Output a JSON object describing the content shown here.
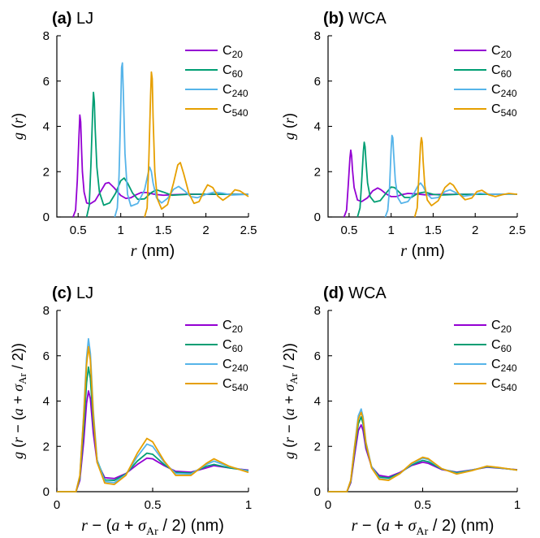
{
  "colors": {
    "C20": "#9400d3",
    "C60": "#009e73",
    "C240": "#56b4e9",
    "C540": "#e69f00"
  },
  "chart_data": [
    {
      "type": "line",
      "panel": "(a)",
      "title": "LJ",
      "xlabel_var": "r",
      "xlabel_unit": " (nm)",
      "ylabel_text": "g (r)",
      "xlim": [
        0.25,
        2.5
      ],
      "ylim": [
        0,
        8
      ],
      "xticks": [
        0.5,
        1,
        1.5,
        2,
        2.5
      ],
      "xtick_labels": [
        "0.5",
        "1",
        "1.5",
        "2",
        "2.5"
      ],
      "yticks": [
        0,
        2,
        4,
        6,
        8
      ],
      "legend": "top-right",
      "series": [
        {
          "name": "C20",
          "name_main": "C",
          "name_sub": "20",
          "color": "#9400d3",
          "x": [
            0.44,
            0.47,
            0.49,
            0.51,
            0.52,
            0.53,
            0.54,
            0.55,
            0.57,
            0.6,
            0.64,
            0.7,
            0.76,
            0.82,
            0.86,
            0.92,
            1.0,
            1.06,
            1.12,
            1.18,
            1.24,
            1.3,
            1.4,
            1.5,
            1.6,
            1.8,
            2.0,
            2.2,
            2.5
          ],
          "y": [
            0,
            0.3,
            1.6,
            3.6,
            4.5,
            4.2,
            3.0,
            2.0,
            1.1,
            0.62,
            0.58,
            0.72,
            1.1,
            1.48,
            1.52,
            1.3,
            0.95,
            0.82,
            0.85,
            0.98,
            1.08,
            1.08,
            1.0,
            0.96,
            0.98,
            1.01,
            1.0,
            1.0,
            1.0
          ]
        },
        {
          "name": "C60",
          "name_main": "C",
          "name_sub": "60",
          "color": "#009e73",
          "x": [
            0.6,
            0.63,
            0.65,
            0.67,
            0.68,
            0.69,
            0.7,
            0.72,
            0.75,
            0.8,
            0.87,
            0.94,
            1.0,
            1.04,
            1.08,
            1.14,
            1.2,
            1.28,
            1.36,
            1.42,
            1.5,
            1.6,
            1.8,
            2.0,
            2.2,
            2.5
          ],
          "y": [
            0,
            0.5,
            2.3,
            4.6,
            5.5,
            5.1,
            3.9,
            2.2,
            1.1,
            0.52,
            0.62,
            1.05,
            1.6,
            1.72,
            1.5,
            1.05,
            0.78,
            0.8,
            1.08,
            1.2,
            1.1,
            0.96,
            1.0,
            1.01,
            1.0,
            1.0
          ]
        },
        {
          "name": "C240",
          "name_main": "C",
          "name_sub": "240",
          "color": "#56b4e9",
          "x": [
            0.93,
            0.96,
            0.98,
            1.0,
            1.01,
            1.02,
            1.03,
            1.05,
            1.08,
            1.12,
            1.2,
            1.28,
            1.32,
            1.34,
            1.36,
            1.38,
            1.42,
            1.48,
            1.55,
            1.62,
            1.68,
            1.75,
            1.82,
            1.9,
            2.0,
            2.1,
            2.2,
            2.3,
            2.5
          ],
          "y": [
            0,
            0.4,
            1.8,
            4.8,
            6.6,
            6.8,
            5.6,
            2.8,
            1.0,
            0.48,
            0.6,
            1.2,
            1.9,
            2.2,
            2.0,
            1.5,
            0.85,
            0.62,
            0.82,
            1.22,
            1.35,
            1.15,
            0.9,
            0.85,
            1.0,
            1.1,
            1.05,
            0.97,
            1.0
          ]
        },
        {
          "name": "C540",
          "name_main": "C",
          "name_sub": "540",
          "color": "#e69f00",
          "x": [
            1.28,
            1.31,
            1.33,
            1.35,
            1.36,
            1.37,
            1.38,
            1.4,
            1.43,
            1.48,
            1.55,
            1.62,
            1.67,
            1.7,
            1.74,
            1.8,
            1.86,
            1.92,
            1.98,
            2.02,
            2.08,
            2.14,
            2.2,
            2.28,
            2.34,
            2.4,
            2.5
          ],
          "y": [
            0,
            0.4,
            2.5,
            5.3,
            6.4,
            6.1,
            4.4,
            2.0,
            0.8,
            0.35,
            0.55,
            1.5,
            2.3,
            2.4,
            1.9,
            1.05,
            0.6,
            0.68,
            1.15,
            1.42,
            1.3,
            0.92,
            0.74,
            0.95,
            1.2,
            1.15,
            0.9
          ]
        }
      ]
    },
    {
      "type": "line",
      "panel": "(b)",
      "title": "WCA",
      "xlabel_var": "r",
      "xlabel_unit": " (nm)",
      "ylabel_text": "g (r)",
      "xlim": [
        0.25,
        2.5
      ],
      "ylim": [
        0,
        8
      ],
      "xticks": [
        0.5,
        1,
        1.5,
        2,
        2.5
      ],
      "xtick_labels": [
        "0.5",
        "1",
        "1.5",
        "2",
        "2.5"
      ],
      "yticks": [
        0,
        2,
        4,
        6,
        8
      ],
      "legend": "top-right",
      "series": [
        {
          "name": "C20",
          "name_main": "C",
          "name_sub": "20",
          "color": "#9400d3",
          "x": [
            0.44,
            0.47,
            0.49,
            0.51,
            0.52,
            0.53,
            0.54,
            0.56,
            0.6,
            0.65,
            0.72,
            0.78,
            0.84,
            0.88,
            0.94,
            1.0,
            1.06,
            1.12,
            1.2,
            1.3,
            1.4,
            1.6,
            1.8,
            2.0,
            2.5
          ],
          "y": [
            0,
            0.3,
            1.4,
            2.6,
            2.95,
            2.7,
            2.1,
            1.3,
            0.75,
            0.68,
            0.85,
            1.15,
            1.28,
            1.2,
            1.02,
            0.9,
            0.9,
            0.98,
            1.04,
            1.02,
            0.98,
            1.0,
            1.0,
            1.0,
            1.0
          ]
        },
        {
          "name": "C60",
          "name_main": "C",
          "name_sub": "60",
          "color": "#009e73",
          "x": [
            0.6,
            0.63,
            0.65,
            0.67,
            0.68,
            0.69,
            0.7,
            0.72,
            0.75,
            0.8,
            0.87,
            0.95,
            1.0,
            1.04,
            1.1,
            1.16,
            1.24,
            1.32,
            1.4,
            1.5,
            1.6,
            1.8,
            2.0,
            2.5
          ],
          "y": [
            0,
            0.4,
            1.6,
            2.9,
            3.3,
            3.1,
            2.5,
            1.5,
            0.9,
            0.66,
            0.72,
            1.1,
            1.32,
            1.3,
            1.08,
            0.86,
            0.86,
            1.05,
            1.1,
            1.0,
            0.97,
            1.0,
            1.0,
            1.0
          ]
        },
        {
          "name": "C240",
          "name_main": "C",
          "name_sub": "240",
          "color": "#56b4e9",
          "x": [
            0.93,
            0.96,
            0.98,
            1.0,
            1.01,
            1.02,
            1.03,
            1.05,
            1.08,
            1.12,
            1.2,
            1.28,
            1.32,
            1.35,
            1.38,
            1.42,
            1.48,
            1.56,
            1.64,
            1.7,
            1.78,
            1.86,
            1.95,
            2.05,
            2.2,
            2.5
          ],
          "y": [
            0,
            0.3,
            1.2,
            3.0,
            3.6,
            3.5,
            2.8,
            1.6,
            0.85,
            0.6,
            0.68,
            1.1,
            1.38,
            1.5,
            1.35,
            1.05,
            0.82,
            0.86,
            1.12,
            1.2,
            1.05,
            0.92,
            0.96,
            1.05,
            1.0,
            1.0
          ]
        },
        {
          "name": "C540",
          "name_main": "C",
          "name_sub": "540",
          "color": "#e69f00",
          "x": [
            1.28,
            1.31,
            1.33,
            1.35,
            1.36,
            1.37,
            1.38,
            1.4,
            1.43,
            1.48,
            1.56,
            1.64,
            1.7,
            1.74,
            1.8,
            1.88,
            1.96,
            2.02,
            2.08,
            2.16,
            2.24,
            2.32,
            2.4,
            2.5
          ],
          "y": [
            0,
            0.4,
            1.8,
            3.2,
            3.5,
            3.3,
            2.5,
            1.4,
            0.75,
            0.5,
            0.72,
            1.3,
            1.5,
            1.4,
            1.05,
            0.76,
            0.84,
            1.12,
            1.18,
            0.98,
            0.9,
            0.98,
            1.04,
            1.0
          ]
        }
      ]
    },
    {
      "type": "line",
      "panel": "(c)",
      "title": "LJ",
      "xlabel_text": "r − (a + σAr / 2) (nm)",
      "ylabel_text": "g (r − (a + σAr / 2))",
      "xlim": [
        0,
        1
      ],
      "ylim": [
        0,
        8
      ],
      "xticks": [
        0,
        0.5,
        1
      ],
      "xtick_labels": [
        "0",
        "0.5",
        "1"
      ],
      "yticks": [
        0,
        2,
        4,
        6,
        8
      ],
      "legend": "top-right",
      "series": [
        {
          "name": "C20",
          "name_main": "C",
          "name_sub": "20",
          "color": "#9400d3",
          "x": [
            0,
            0.1,
            0.12,
            0.14,
            0.155,
            0.165,
            0.175,
            0.19,
            0.21,
            0.25,
            0.3,
            0.36,
            0.42,
            0.47,
            0.5,
            0.56,
            0.62,
            0.7,
            0.78,
            0.82,
            0.9,
            1.0
          ],
          "y": [
            0,
            0,
            0.5,
            2.2,
            3.9,
            4.45,
            4.1,
            2.6,
            1.3,
            0.62,
            0.58,
            0.8,
            1.2,
            1.48,
            1.45,
            1.15,
            0.9,
            0.86,
            1.05,
            1.15,
            1.05,
            0.95
          ]
        },
        {
          "name": "C60",
          "name_main": "C",
          "name_sub": "60",
          "color": "#009e73",
          "x": [
            0,
            0.1,
            0.12,
            0.14,
            0.155,
            0.165,
            0.175,
            0.19,
            0.21,
            0.25,
            0.3,
            0.36,
            0.42,
            0.47,
            0.5,
            0.56,
            0.62,
            0.7,
            0.78,
            0.82,
            0.9,
            1.0
          ],
          "y": [
            0,
            0,
            0.6,
            2.8,
            4.8,
            5.5,
            5.0,
            3.1,
            1.4,
            0.52,
            0.5,
            0.78,
            1.35,
            1.7,
            1.65,
            1.2,
            0.85,
            0.82,
            1.12,
            1.2,
            1.05,
            0.93
          ]
        },
        {
          "name": "C240",
          "name_main": "C",
          "name_sub": "240",
          "color": "#56b4e9",
          "x": [
            0,
            0.1,
            0.12,
            0.14,
            0.155,
            0.165,
            0.175,
            0.19,
            0.21,
            0.25,
            0.3,
            0.36,
            0.42,
            0.47,
            0.5,
            0.56,
            0.62,
            0.7,
            0.78,
            0.82,
            0.9,
            1.0
          ],
          "y": [
            0,
            0,
            0.7,
            3.4,
            5.9,
            6.75,
            6.1,
            3.6,
            1.4,
            0.45,
            0.4,
            0.75,
            1.55,
            2.1,
            2.0,
            1.3,
            0.8,
            0.78,
            1.2,
            1.35,
            1.1,
            0.9
          ]
        },
        {
          "name": "C540",
          "name_main": "C",
          "name_sub": "540",
          "color": "#e69f00",
          "x": [
            0,
            0.1,
            0.12,
            0.14,
            0.155,
            0.165,
            0.175,
            0.19,
            0.21,
            0.25,
            0.3,
            0.36,
            0.42,
            0.47,
            0.5,
            0.56,
            0.62,
            0.7,
            0.78,
            0.82,
            0.9,
            1.0
          ],
          "y": [
            0,
            0,
            0.7,
            3.3,
            5.6,
            6.4,
            5.8,
            3.4,
            1.3,
            0.38,
            0.32,
            0.72,
            1.7,
            2.35,
            2.2,
            1.35,
            0.72,
            0.72,
            1.25,
            1.45,
            1.12,
            0.85
          ]
        }
      ]
    },
    {
      "type": "line",
      "panel": "(d)",
      "title": "WCA",
      "xlabel_text": "r − (a + σAr / 2) (nm)",
      "ylabel_text": "g (r − (a + σAr / 2))",
      "xlim": [
        0,
        1
      ],
      "ylim": [
        0,
        8
      ],
      "xticks": [
        0,
        0.5,
        1
      ],
      "xtick_labels": [
        "0",
        "0.5",
        "1"
      ],
      "yticks": [
        0,
        2,
        4,
        6,
        8
      ],
      "legend": "top-right",
      "series": [
        {
          "name": "C20",
          "name_main": "C",
          "name_sub": "20",
          "color": "#9400d3",
          "x": [
            0,
            0.1,
            0.12,
            0.14,
            0.16,
            0.175,
            0.185,
            0.2,
            0.23,
            0.27,
            0.32,
            0.38,
            0.44,
            0.5,
            0.53,
            0.6,
            0.68,
            0.76,
            0.84,
            0.9,
            1.0
          ],
          "y": [
            0,
            0,
            0.4,
            1.6,
            2.7,
            2.95,
            2.7,
            1.9,
            1.1,
            0.72,
            0.65,
            0.85,
            1.15,
            1.3,
            1.25,
            0.98,
            0.86,
            0.96,
            1.08,
            1.04,
            0.97
          ]
        },
        {
          "name": "C60",
          "name_main": "C",
          "name_sub": "60",
          "color": "#009e73",
          "x": [
            0,
            0.1,
            0.12,
            0.14,
            0.16,
            0.175,
            0.185,
            0.2,
            0.23,
            0.27,
            0.32,
            0.38,
            0.44,
            0.5,
            0.53,
            0.6,
            0.68,
            0.76,
            0.84,
            0.9,
            1.0
          ],
          "y": [
            0,
            0,
            0.45,
            1.8,
            3.0,
            3.3,
            3.0,
            2.05,
            1.1,
            0.65,
            0.6,
            0.82,
            1.18,
            1.38,
            1.32,
            1.0,
            0.84,
            0.95,
            1.1,
            1.05,
            0.96
          ]
        },
        {
          "name": "C240",
          "name_main": "C",
          "name_sub": "240",
          "color": "#56b4e9",
          "x": [
            0,
            0.1,
            0.12,
            0.14,
            0.16,
            0.175,
            0.185,
            0.2,
            0.23,
            0.27,
            0.32,
            0.38,
            0.44,
            0.5,
            0.53,
            0.6,
            0.68,
            0.76,
            0.84,
            0.9,
            1.0
          ],
          "y": [
            0,
            0,
            0.5,
            2.0,
            3.35,
            3.65,
            3.3,
            2.2,
            1.1,
            0.58,
            0.52,
            0.8,
            1.22,
            1.48,
            1.42,
            1.02,
            0.8,
            0.94,
            1.12,
            1.06,
            0.95
          ]
        },
        {
          "name": "C540",
          "name_main": "C",
          "name_sub": "540",
          "color": "#e69f00",
          "x": [
            0,
            0.1,
            0.12,
            0.14,
            0.16,
            0.175,
            0.185,
            0.2,
            0.23,
            0.27,
            0.32,
            0.38,
            0.44,
            0.5,
            0.53,
            0.6,
            0.68,
            0.76,
            0.84,
            0.9,
            1.0
          ],
          "y": [
            0,
            0,
            0.5,
            1.95,
            3.2,
            3.5,
            3.2,
            2.15,
            1.05,
            0.55,
            0.5,
            0.8,
            1.25,
            1.52,
            1.46,
            1.02,
            0.78,
            0.93,
            1.13,
            1.07,
            0.95
          ]
        }
      ]
    }
  ]
}
